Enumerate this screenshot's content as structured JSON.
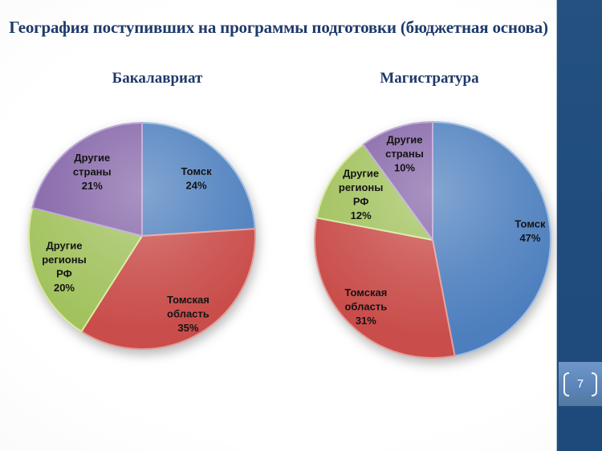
{
  "slide": {
    "title": "География поступивших на программы подготовки (бюджетная основа)",
    "page_number": "7",
    "colors": {
      "title_text": "#1e3a6b",
      "accent_bar": "#1f4c7d",
      "page_number_box": "#5c85ba"
    }
  },
  "chart_data": [
    {
      "type": "pie",
      "title": "Бакалавриат",
      "labels": [
        "Томск",
        "Томская область",
        "Другие регионы РФ",
        "Другие страны"
      ],
      "values": [
        24,
        35,
        20,
        21
      ],
      "unit": "%",
      "colors": [
        "#4d7fbe",
        "#c94d4a",
        "#a2c25e",
        "#8565a8"
      ],
      "edge_colors": [
        "#9dbde4",
        "#e59d99",
        "#d9ea9f",
        "#b7a2d4"
      ],
      "start_angle_deg": 0,
      "direction": "clockwise",
      "label_position": "inside",
      "label_radius": [
        0.7,
        0.8,
        0.74,
        0.72
      ]
    },
    {
      "type": "pie",
      "title": "Магистратура",
      "labels": [
        "Томск",
        "Томская область",
        "Другие регионы РФ",
        "Другие страны"
      ],
      "values": [
        47,
        31,
        12,
        10
      ],
      "unit": "%",
      "colors": [
        "#4d7fbe",
        "#c94d4a",
        "#a2c25e",
        "#8565a8"
      ],
      "edge_colors": [
        "#9dbde4",
        "#e59d99",
        "#d9ea9f",
        "#b7a2d4"
      ],
      "start_angle_deg": 0,
      "direction": "clockwise",
      "label_position": "inside",
      "label_radius": [
        0.83,
        0.8,
        0.72,
        0.77
      ]
    }
  ]
}
